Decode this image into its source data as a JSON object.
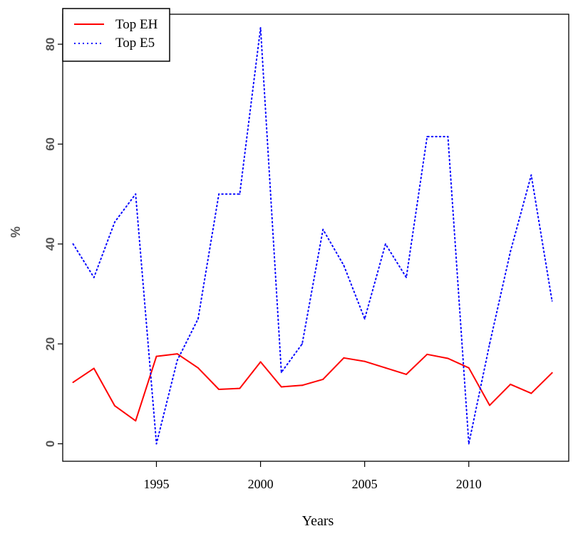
{
  "chart_data": {
    "type": "line",
    "title": "",
    "xlabel": "Years",
    "ylabel": "%",
    "xlim": [
      1990.5,
      2014.8
    ],
    "ylim": [
      -3.5,
      86
    ],
    "xticks": [
      1995,
      2000,
      2005,
      2010
    ],
    "yticks": [
      0,
      20,
      40,
      60,
      80
    ],
    "grid": false,
    "legend_position": "top-left",
    "x": [
      1991,
      1992,
      1993,
      1994,
      1995,
      1996,
      1997,
      1998,
      1999,
      2000,
      2001,
      2002,
      2003,
      2004,
      2005,
      2006,
      2007,
      2008,
      2009,
      2010,
      2011,
      2012,
      2013,
      2014
    ],
    "series": [
      {
        "name": "Top EH",
        "color": "#ff0000",
        "style": "solid",
        "values": [
          12.3,
          15.1,
          7.6,
          4.6,
          17.5,
          18.0,
          15.2,
          10.9,
          11.1,
          16.4,
          11.4,
          11.7,
          12.9,
          17.2,
          16.5,
          15.2,
          13.9,
          17.9,
          17.1,
          15.2,
          7.7,
          11.9,
          10.1,
          14.2
        ]
      },
      {
        "name": "Top E5",
        "color": "#0000ff",
        "style": "dotted",
        "values": [
          40.0,
          33.3,
          44.4,
          50.0,
          0.0,
          16.7,
          25.0,
          50.0,
          50.0,
          83.3,
          14.3,
          20.0,
          42.9,
          35.7,
          25.0,
          40.0,
          33.3,
          61.5,
          61.5,
          0.0,
          20.0,
          38.5,
          53.8,
          28.6
        ]
      }
    ]
  }
}
